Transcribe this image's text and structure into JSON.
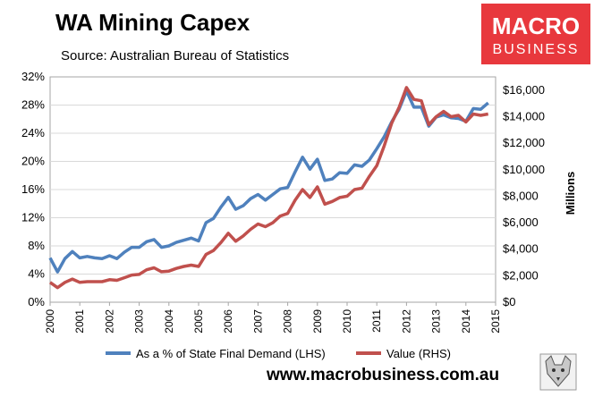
{
  "chart_data": {
    "type": "line",
    "title": "WA Mining Capex",
    "subtitle": "Source: Australian Bureau of Statistics",
    "ylabel_right": "Millions",
    "y_left": {
      "range": [
        0,
        32
      ],
      "ticks": [
        "0%",
        "4%",
        "8%",
        "12%",
        "16%",
        "20%",
        "24%",
        "28%",
        "32%"
      ]
    },
    "y_right": {
      "range": [
        0,
        17000
      ],
      "ticks": [
        "$0",
        "$2,000",
        "$4,000",
        "$6,000",
        "$8,000",
        "$10,000",
        "$12,000",
        "$14,000",
        "$16,000"
      ]
    },
    "x_ticks": [
      "2000",
      "2001",
      "2002",
      "2003",
      "2004",
      "2005",
      "2006",
      "2007",
      "2008",
      "2009",
      "2010",
      "2011",
      "2012",
      "2013",
      "2014",
      "2015"
    ],
    "x_range": [
      2000,
      2015
    ],
    "series": [
      {
        "name": "As a % of State Final Demand (LHS)",
        "axis": "left",
        "color": "#4f81bd",
        "x": [
          2000.0,
          2000.25,
          2000.5,
          2000.75,
          2001.0,
          2001.25,
          2001.5,
          2001.75,
          2002.0,
          2002.25,
          2002.5,
          2002.75,
          2003.0,
          2003.25,
          2003.5,
          2003.75,
          2004.0,
          2004.25,
          2004.5,
          2004.75,
          2005.0,
          2005.25,
          2005.5,
          2005.75,
          2006.0,
          2006.25,
          2006.5,
          2006.75,
          2007.0,
          2007.25,
          2007.5,
          2007.75,
          2008.0,
          2008.25,
          2008.5,
          2008.75,
          2009.0,
          2009.25,
          2009.5,
          2009.75,
          2010.0,
          2010.25,
          2010.5,
          2010.75,
          2011.0,
          2011.25,
          2011.5,
          2011.75,
          2012.0,
          2012.25,
          2012.5,
          2012.75,
          2013.0,
          2013.25,
          2013.5,
          2013.75,
          2014.0,
          2014.25,
          2014.5,
          2014.75
        ],
        "values": [
          6.3,
          4.3,
          6.2,
          7.2,
          6.3,
          6.5,
          6.3,
          6.2,
          6.6,
          6.2,
          7.1,
          7.8,
          7.8,
          8.6,
          8.9,
          7.8,
          8.0,
          8.5,
          8.8,
          9.1,
          8.7,
          11.3,
          11.9,
          13.5,
          14.9,
          13.2,
          13.7,
          14.7,
          15.3,
          14.5,
          15.3,
          16.1,
          16.3,
          18.5,
          20.6,
          18.9,
          20.3,
          17.3,
          17.5,
          18.4,
          18.3,
          19.5,
          19.3,
          20.2,
          21.8,
          23.5,
          25.6,
          27.4,
          30.0,
          27.7,
          27.7,
          25.0,
          26.3,
          26.6,
          26.2,
          26.1,
          25.7,
          27.5,
          27.4,
          28.3
        ]
      },
      {
        "name": "Value (RHS)",
        "axis": "right",
        "color": "#c0504d",
        "x": [
          2000.0,
          2000.25,
          2000.5,
          2000.75,
          2001.0,
          2001.25,
          2001.5,
          2001.75,
          2002.0,
          2002.25,
          2002.5,
          2002.75,
          2003.0,
          2003.25,
          2003.5,
          2003.75,
          2004.0,
          2004.25,
          2004.5,
          2004.75,
          2005.0,
          2005.25,
          2005.5,
          2005.75,
          2006.0,
          2006.25,
          2006.5,
          2006.75,
          2007.0,
          2007.25,
          2007.5,
          2007.75,
          2008.0,
          2008.25,
          2008.5,
          2008.75,
          2009.0,
          2009.25,
          2009.5,
          2009.75,
          2010.0,
          2010.25,
          2010.5,
          2010.75,
          2011.0,
          2011.25,
          2011.5,
          2011.75,
          2012.0,
          2012.25,
          2012.5,
          2012.75,
          2013.0,
          2013.25,
          2013.5,
          2013.75,
          2014.0,
          2014.25,
          2014.5,
          2014.75
        ],
        "values": [
          1500,
          1100,
          1500,
          1750,
          1500,
          1550,
          1550,
          1550,
          1700,
          1650,
          1850,
          2050,
          2100,
          2450,
          2600,
          2300,
          2350,
          2550,
          2700,
          2800,
          2700,
          3600,
          3900,
          4500,
          5200,
          4600,
          5000,
          5500,
          5900,
          5700,
          6000,
          6500,
          6700,
          7700,
          8500,
          7900,
          8700,
          7400,
          7600,
          7900,
          8000,
          8500,
          8600,
          9500,
          10300,
          11800,
          13500,
          14700,
          16200,
          15300,
          15200,
          13400,
          14000,
          14400,
          14000,
          14100,
          13600,
          14200,
          14100,
          14200
        ]
      }
    ]
  },
  "logo": {
    "line1": "MACRO",
    "line2": "BUSINESS",
    "bg_color": "#e8383d"
  },
  "footer_url": "www.macrobusiness.com.au",
  "mascot_icon": "wolf-icon"
}
